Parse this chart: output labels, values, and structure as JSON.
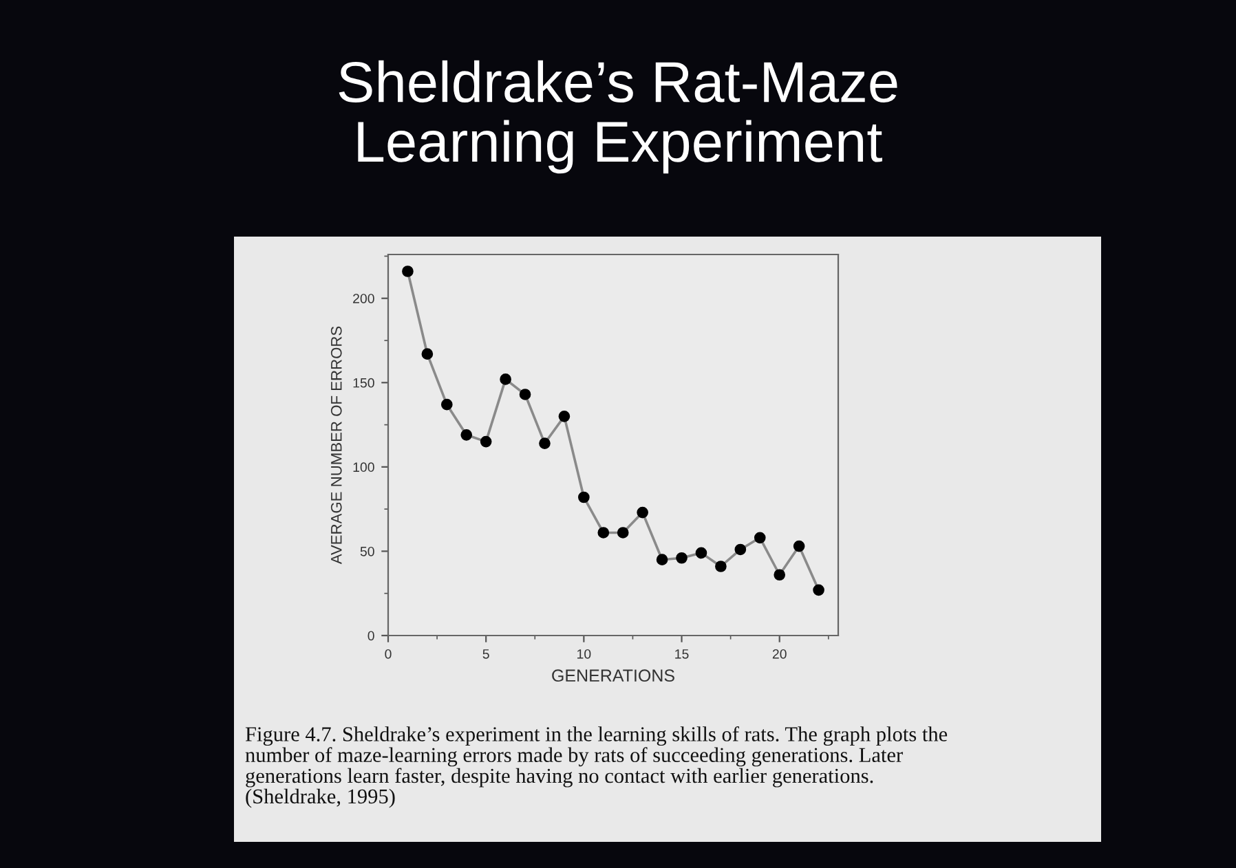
{
  "chart_data": {
    "type": "line",
    "title": "Sheldrake’s Rat-Maze\nLearning Experiment",
    "xlabel": "GENERATIONS",
    "ylabel": "AVERAGE NUMBER OF ERRORS",
    "x": [
      1,
      2,
      3,
      4,
      5,
      6,
      7,
      8,
      9,
      10,
      11,
      12,
      13,
      14,
      15,
      16,
      17,
      18,
      19,
      20,
      21,
      22
    ],
    "series": [
      {
        "color": "#8a8a8a",
        "values": [
          216,
          167,
          137,
          119,
          115,
          152,
          143,
          114,
          130,
          82,
          61,
          61,
          73,
          45,
          46,
          49,
          41,
          51,
          58,
          36,
          53,
          27
        ]
      }
    ],
    "xlim": [
      0,
      23
    ],
    "ylim": [
      0,
      226
    ],
    "xticks": [
      0,
      5,
      10,
      15,
      20
    ],
    "yticks": [
      0,
      50,
      100,
      150,
      200
    ],
    "marker": "circle",
    "line_style": "solid",
    "grid": false,
    "legend": false,
    "annotations": [
      "Figure 4.7. Sheldrake’s experiment in the learning skills of rats. The graph plots the\nnumber of maze-learning errors made by rats of succeeding generations. Later\ngenerations learn faster, despite having no contact with earlier generations.\n(Sheldrake, 1995)"
    ]
  }
}
